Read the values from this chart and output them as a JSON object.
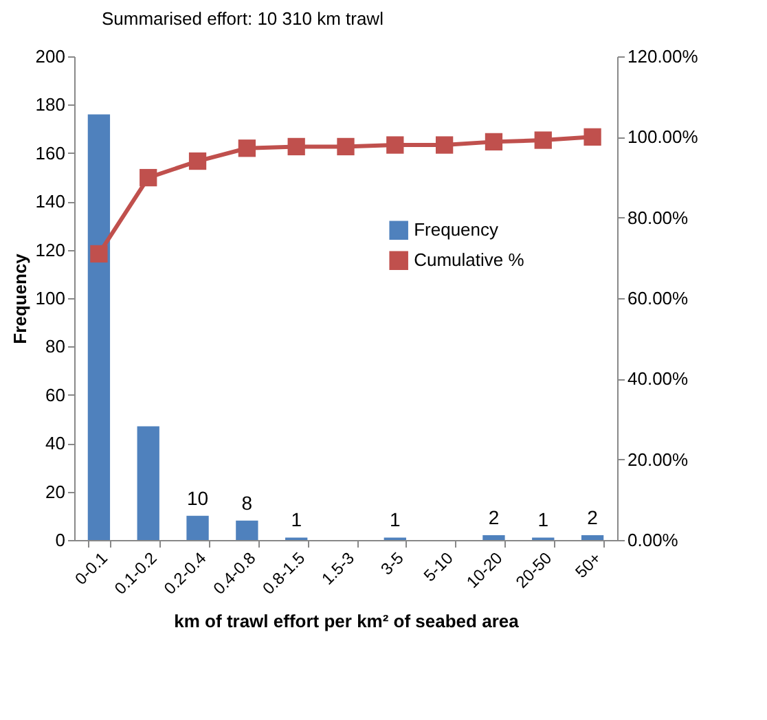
{
  "chart_data": {
    "type": "bar",
    "title": "Summarised effort:  10 310 km trawl",
    "xlabel": "km of trawl effort per km² of seabed area",
    "ylabel": "Frequency",
    "categories": [
      "0-0.1",
      "0.1-0.2",
      "0.2-0.4",
      "0.4-0.8",
      "0.8-1.5",
      "1.5-3",
      "3-5",
      "5-10",
      "10-20",
      "20-50",
      "50+"
    ],
    "series": [
      {
        "name": "Frequency",
        "color": "#4f81bd",
        "values": [
          176,
          47,
          10,
          8,
          1,
          0,
          1,
          0,
          2,
          1,
          2
        ],
        "value_labels": [
          null,
          null,
          "10",
          "8",
          "1",
          null,
          "1",
          null,
          "2",
          "1",
          "2"
        ]
      },
      {
        "name": "Cumulative %",
        "type": "line",
        "axis": "y2",
        "color": "#c0504d",
        "marker": "square",
        "values": [
          71.0,
          89.9,
          94.0,
          97.2,
          97.6,
          97.6,
          98.0,
          98.0,
          98.8,
          99.2,
          100
        ]
      }
    ],
    "ylim": [
      0,
      200
    ],
    "yticks": [
      0,
      20,
      40,
      60,
      80,
      100,
      120,
      140,
      160,
      180,
      200
    ],
    "y2lim": [
      0,
      120
    ],
    "y2ticks": [
      {
        "value": 0,
        "label": "0.00%"
      },
      {
        "value": 20,
        "label": "20.00%"
      },
      {
        "value": 40,
        "label": "40.00%"
      },
      {
        "value": 60,
        "label": "60.00%"
      },
      {
        "value": 80,
        "label": "80.00%"
      },
      {
        "value": 100,
        "label": "100.00%"
      },
      {
        "value": 120,
        "label": "120.00%"
      }
    ],
    "grid": false,
    "legend": "right"
  }
}
